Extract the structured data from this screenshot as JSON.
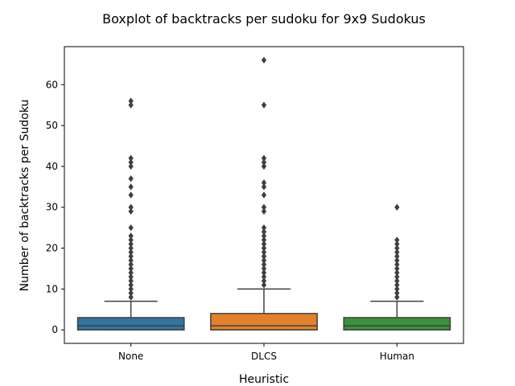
{
  "chart_data": {
    "type": "boxplot",
    "title": "Boxplot of backtracks per sudoku for 9x9 Sudokus",
    "xlabel": "Heuristic",
    "ylabel": "Number of backtracks per Sudoku",
    "ylim": [
      -3.3,
      69.3
    ],
    "yticks": [
      0,
      10,
      20,
      30,
      40,
      50,
      60
    ],
    "grid": false,
    "categories": [
      "None",
      "DLCS",
      "Human"
    ],
    "series": [
      {
        "name": "None",
        "color": "#3274a1",
        "q1": 0,
        "median": 1,
        "q3": 3,
        "whisker_low": 0,
        "whisker_high": 7,
        "outliers": [
          8,
          9,
          10,
          11,
          12,
          13,
          14,
          15,
          16,
          17,
          18,
          19,
          20,
          21,
          22,
          23,
          25,
          29,
          30,
          33,
          35,
          37,
          40,
          41,
          42,
          55,
          56
        ]
      },
      {
        "name": "DLCS",
        "color": "#e1812c",
        "q1": 0,
        "median": 1,
        "q3": 4,
        "whisker_low": 0,
        "whisker_high": 10,
        "outliers": [
          11,
          12,
          13,
          14,
          15,
          16,
          17,
          18,
          19,
          20,
          21,
          22,
          23,
          24,
          25,
          29,
          30,
          33,
          35,
          36,
          40,
          41,
          42,
          55,
          66
        ]
      },
      {
        "name": "Human",
        "color": "#3a923a",
        "q1": 0,
        "median": 1,
        "q3": 3,
        "whisker_low": 0,
        "whisker_high": 7,
        "outliers": [
          8,
          9,
          10,
          11,
          12,
          13,
          14,
          15,
          16,
          17,
          18,
          19,
          20,
          21,
          22,
          30
        ]
      }
    ]
  }
}
